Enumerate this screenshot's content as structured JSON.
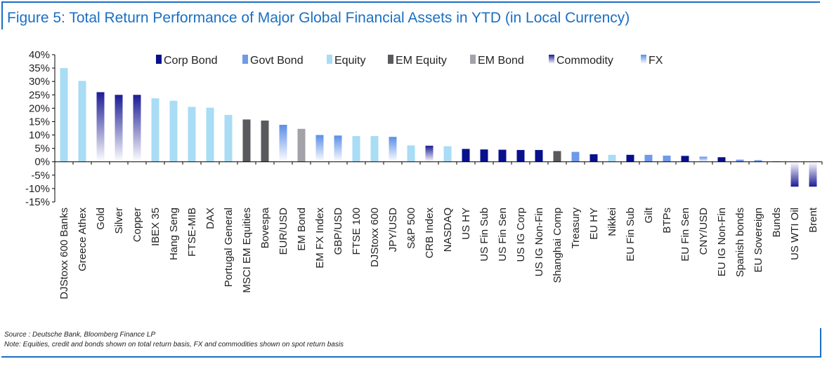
{
  "title": "Figure 5: Total Return Performance of Major Global Financial Assets in YTD (in Local Currency)",
  "source": "Source : Deutsche Bank, Bloomberg Finance LP",
  "note": "Note: Equities, credit and bonds shown on total return basis, FX and commodities shown on spot return basis",
  "colors": {
    "Corp Bond": "#08108c",
    "Govt Bond": "#6f9ae8",
    "Equity": "#a9dcf5",
    "EM Equity": "#5a5a5e",
    "EM Bond": "#a2a2a8",
    "Commodity": "#1c1c96",
    "FX": "#5a8ee6",
    "gradientLight": "#ffffff",
    "frame": "#1a6fc4"
  },
  "chart_data": {
    "type": "bar",
    "title": "Figure 5: Total Return Performance of Major Global Financial Assets in YTD (in Local Currency)",
    "ylim": [
      -15,
      40
    ],
    "yticks": [
      40,
      35,
      30,
      25,
      20,
      15,
      10,
      5,
      0,
      -5,
      -10,
      -15
    ],
    "ytick_labels": [
      "40%",
      "35%",
      "30%",
      "25%",
      "20%",
      "15%",
      "10%",
      "5%",
      "0%",
      "-5%",
      "-10%",
      "-15%"
    ],
    "grid": false,
    "legend_position": "top",
    "legend": [
      "Corp Bond",
      "Govt Bond",
      "Equity",
      "EM Equity",
      "EM Bond",
      "Commodity",
      "FX"
    ],
    "categories": [
      "DJStoxx 600 Banks",
      "Greece Athex",
      "Gold",
      "Silver",
      "Copper",
      "IBEX 35",
      "Hang Seng",
      "FTSE-MIB",
      "DAX",
      "Portugal General",
      "MSCI EM Equities",
      "Bovespa",
      "EUR/USD",
      "EM Bond",
      "EM FX Index",
      "GBP/USD",
      "FTSE 100",
      "DJStoxx 600",
      "JPY/USD",
      "S&P 500",
      "CRB Index",
      "NASDAQ",
      "US HY",
      "US Fin Sub",
      "US Fin Sen",
      "US IG Corp",
      "US IG Non-Fin",
      "Shanghai Comp",
      "Treasury",
      "EU HY",
      "Nikkei",
      "EU Fin Sub",
      "Gilt",
      "BTPs",
      "EU Fin Sen",
      "CNY/USD",
      "EU IG Non-Fin",
      "Spanish bonds",
      "EU Sovereign",
      "Bunds",
      "US WTI Oil",
      "Brent"
    ],
    "values": [
      35.0,
      30.2,
      26.0,
      25.0,
      25.0,
      23.7,
      22.8,
      20.5,
      20.2,
      17.5,
      15.8,
      15.4,
      13.8,
      12.3,
      10.0,
      9.8,
      9.6,
      9.6,
      9.3,
      6.1,
      6.0,
      5.8,
      4.8,
      4.6,
      4.5,
      4.4,
      4.4,
      4.0,
      3.7,
      2.8,
      2.6,
      2.6,
      2.6,
      2.3,
      2.2,
      1.9,
      1.7,
      0.8,
      0.6,
      0.2,
      -9.3,
      -9.3
    ],
    "asset_class": [
      "Equity",
      "Equity",
      "Commodity",
      "Commodity",
      "Commodity",
      "Equity",
      "Equity",
      "Equity",
      "Equity",
      "Equity",
      "EM Equity",
      "EM Equity",
      "FX",
      "EM Bond",
      "FX",
      "FX",
      "Equity",
      "Equity",
      "FX",
      "Equity",
      "Commodity",
      "Equity",
      "Corp Bond",
      "Corp Bond",
      "Corp Bond",
      "Corp Bond",
      "Corp Bond",
      "EM Equity",
      "Govt Bond",
      "Corp Bond",
      "Equity",
      "Corp Bond",
      "Govt Bond",
      "Govt Bond",
      "Corp Bond",
      "FX",
      "Corp Bond",
      "Govt Bond",
      "Govt Bond",
      "Govt Bond",
      "Commodity",
      "Commodity"
    ]
  }
}
